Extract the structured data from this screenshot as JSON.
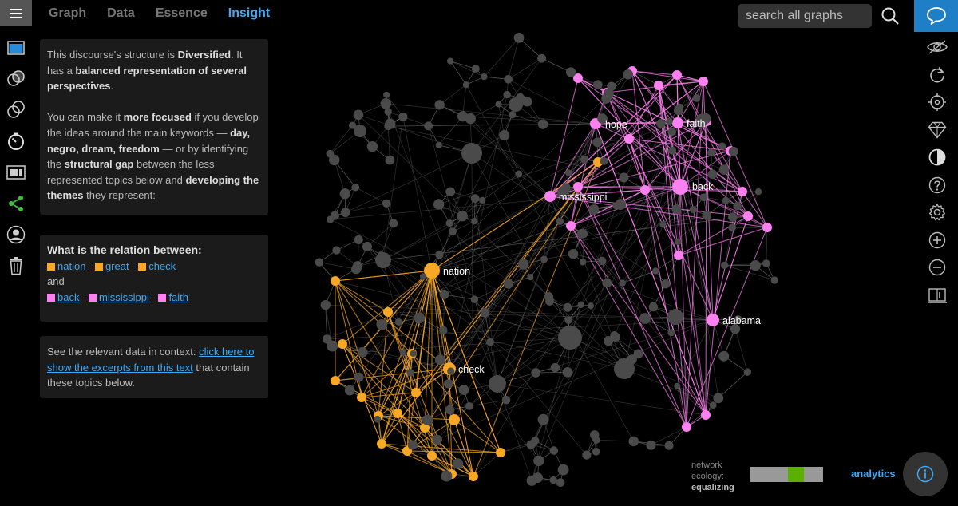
{
  "nav": {
    "tabs": [
      {
        "label": "Graph"
      },
      {
        "label": "Data"
      },
      {
        "label": "Essence"
      },
      {
        "label": "Insight"
      }
    ],
    "active_tab": "Insight"
  },
  "search": {
    "placeholder": "search all graphs"
  },
  "left_toolbar": [
    "window-icon",
    "overlap-icon",
    "intersect-icon",
    "timer-icon",
    "film-icon",
    "share-icon",
    "user-icon",
    "trash-icon"
  ],
  "right_toolbar": [
    "eye-icon",
    "refresh-icon",
    "target-icon",
    "diamond-icon",
    "contrast-icon",
    "help-icon",
    "gear-icon",
    "zoom-in-icon",
    "zoom-out-icon",
    "book-icon"
  ],
  "insight": {
    "s1": "This discourse's structure is ",
    "structure": "Diversified",
    "s2": ". It has a ",
    "balance": "balanced representation of several perspectives",
    "s3": ".",
    "p2a": "You can make it ",
    "focus": "more focused",
    "p2b": " if you develop the ideas around the main keywords — ",
    "keywords": "day, negro, dream, freedom",
    "p2c": " — or by identifying the ",
    "gap": "structural gap",
    "p2d": " between the less represented topics below and ",
    "develop": "developing the themes",
    "p2e": " they represent:"
  },
  "relation": {
    "question": "What is the relation between:",
    "group1": [
      "nation",
      "great",
      "check"
    ],
    "connector": "and",
    "group2": [
      "back",
      "mississippi",
      "faith"
    ],
    "sep": " - "
  },
  "context": {
    "lead": "See the relevant data in context: ",
    "link": "click here to show the excerpts from this text",
    "tail": " that contain these topics below."
  },
  "graph_labels": {
    "hope": "hope",
    "faith": "faith",
    "back": "back",
    "mississippi": "mississippi",
    "nation": "nation",
    "alabama": "alabama",
    "check": "check"
  },
  "colors": {
    "orange": "#f9a825",
    "pink": "#ff80f0",
    "gray": "#4a4a4a",
    "accent": "#3fa9f5"
  },
  "ecology": {
    "l1": "network",
    "l2": "ecology:",
    "l3": "equalizing"
  },
  "analytics": "analytics"
}
